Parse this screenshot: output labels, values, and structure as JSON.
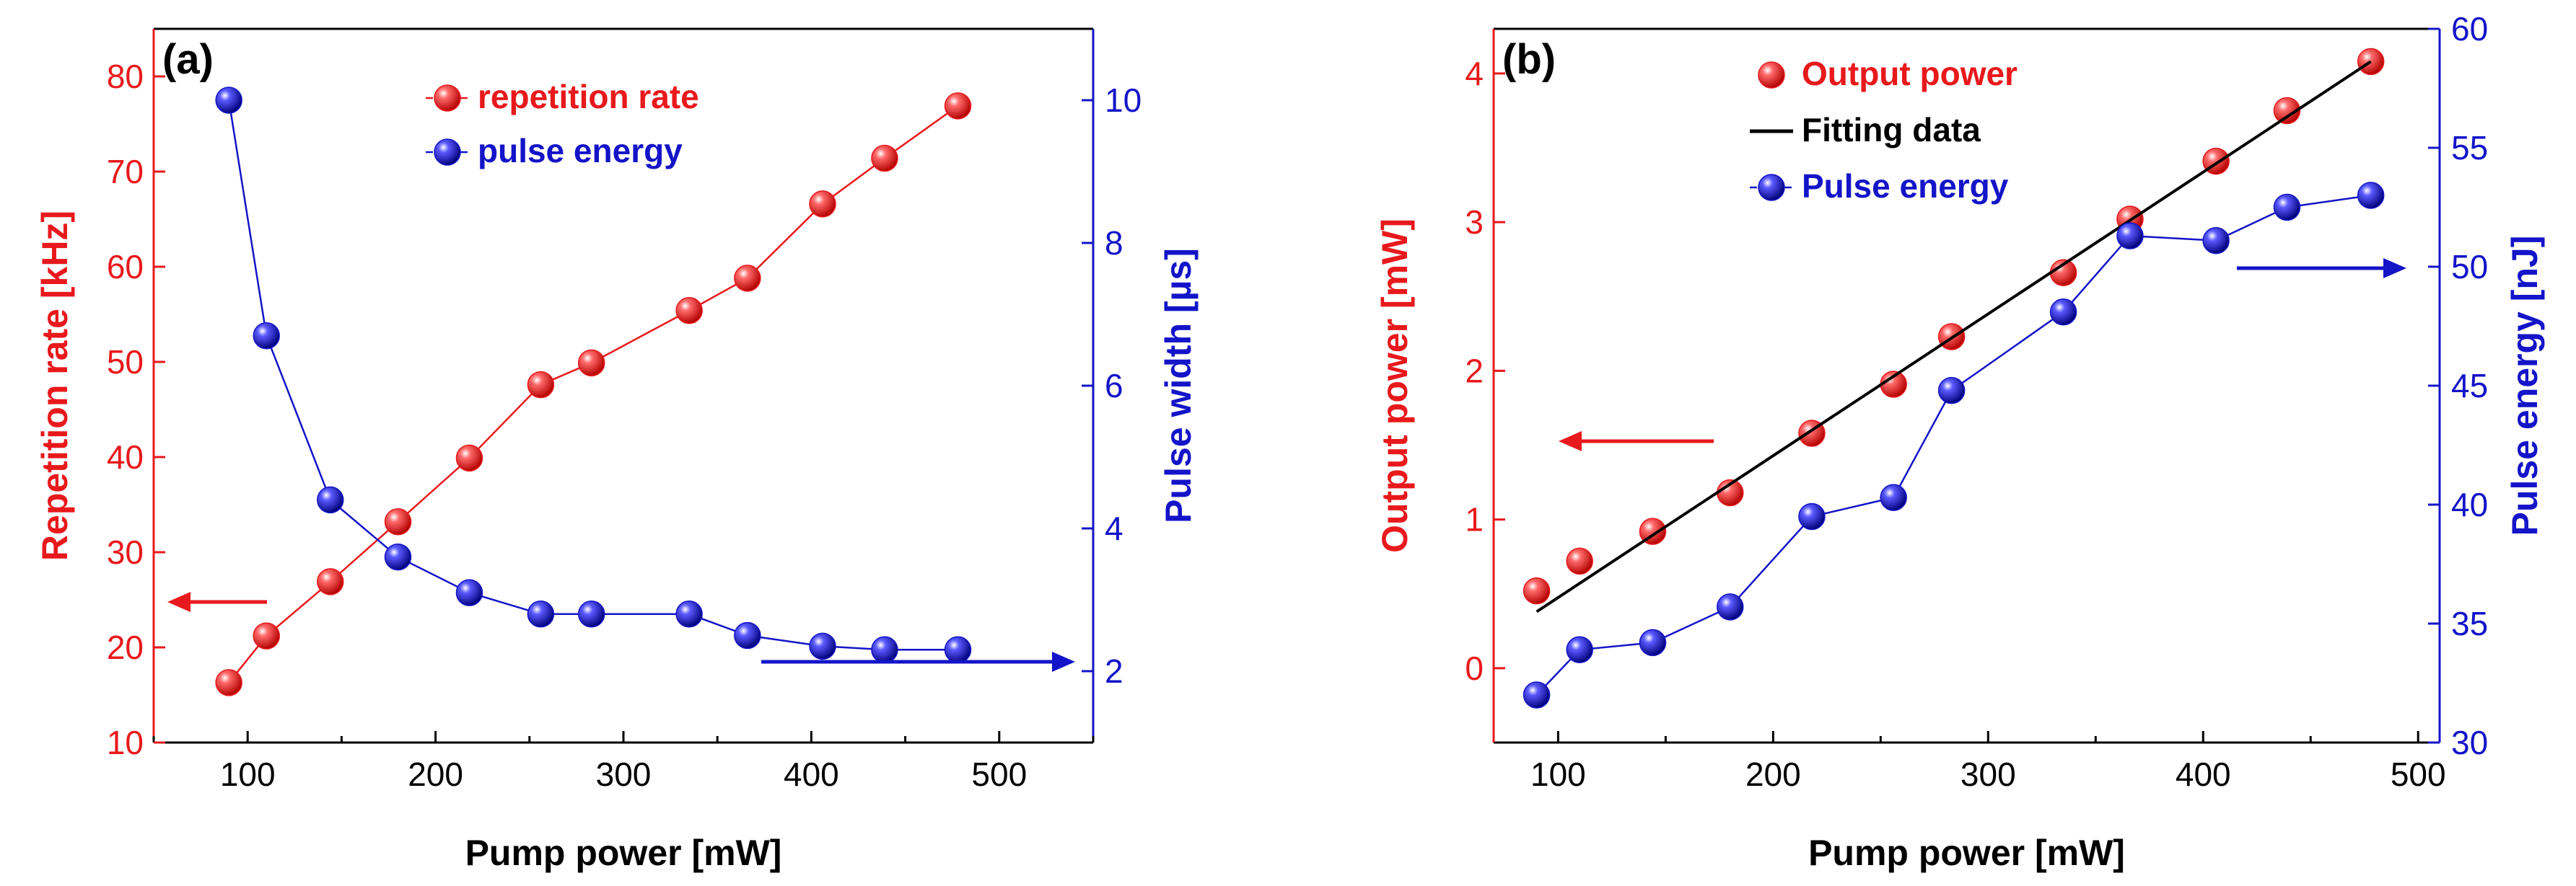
{
  "figure": {
    "colors": {
      "red": "#e8191c",
      "blue": "#1414c8",
      "black": "#000000"
    }
  },
  "chart_data": [
    {
      "type": "line",
      "panel_label": "(a)",
      "title": "",
      "xlabel": "Pump power [mW]",
      "ylabel": "Repetition rate [kHz]",
      "y2label": "Pulse width [µs]",
      "xlim": [
        50,
        550
      ],
      "ylim": [
        10,
        85
      ],
      "y2lim": [
        1,
        11
      ],
      "x_ticks": [
        100,
        200,
        300,
        400,
        500
      ],
      "y_ticks": [
        10,
        20,
        30,
        40,
        50,
        60,
        70,
        80
      ],
      "y2_ticks": [
        2,
        4,
        6,
        8,
        10
      ],
      "x": [
        90,
        110,
        144,
        180,
        218,
        256,
        283,
        335,
        366,
        406,
        439,
        478
      ],
      "series": [
        {
          "name": "repetition rate",
          "axis": "left",
          "color": "#e8191c",
          "values": [
            16.3,
            21.2,
            26.9,
            33.2,
            39.9,
            47.6,
            49.9,
            55.4,
            58.8,
            66.6,
            71.4,
            76.9
          ]
        },
        {
          "name": "pulse energy",
          "axis": "right",
          "color": "#1414c8",
          "values": [
            10.0,
            6.7,
            4.4,
            3.6,
            3.1,
            2.8,
            2.8,
            2.8,
            2.5,
            2.35,
            2.3,
            2.3
          ]
        }
      ],
      "legend": {
        "placement": "top-center",
        "entries": [
          "repetition rate",
          "pulse energy"
        ]
      },
      "arrows": [
        {
          "series": "repetition rate",
          "direction": "left"
        },
        {
          "series": "pulse energy",
          "direction": "right"
        }
      ]
    },
    {
      "type": "line",
      "panel_label": "(b)",
      "title": "",
      "xlabel": "Pump power [mW]",
      "ylabel": "Output power [mW]",
      "y2label": "Pulse energy [nJ]",
      "xlim": [
        70,
        510
      ],
      "ylim": [
        -0.5,
        4.3
      ],
      "y2lim": [
        30,
        60
      ],
      "x_ticks": [
        100,
        200,
        300,
        400,
        500
      ],
      "y_ticks": [
        0,
        1,
        2,
        3,
        4
      ],
      "y2_ticks": [
        30,
        35,
        40,
        45,
        50,
        55,
        60
      ],
      "x": [
        90,
        110,
        144,
        180,
        218,
        256,
        283,
        335,
        366,
        406,
        439,
        478
      ],
      "series": [
        {
          "name": "Output power",
          "axis": "left",
          "color": "#e8191c",
          "style": "markers",
          "values": [
            0.52,
            0.72,
            0.92,
            1.18,
            1.58,
            1.91,
            2.23,
            2.66,
            3.02,
            3.41,
            3.75,
            4.08
          ]
        },
        {
          "name": "Fitting data",
          "axis": "left",
          "color": "#000000",
          "style": "line",
          "x": [
            90,
            478
          ],
          "values": [
            0.38,
            4.08
          ]
        },
        {
          "name": "Pulse energy",
          "axis": "right",
          "color": "#1414c8",
          "style": "line+markers",
          "values": [
            32.0,
            33.9,
            34.2,
            35.7,
            39.5,
            40.3,
            44.8,
            48.1,
            51.3,
            51.1,
            52.5,
            53.0
          ]
        }
      ],
      "legend": {
        "placement": "top-center",
        "entries": [
          "Output power",
          "Fitting data",
          "Pulse energy"
        ]
      },
      "arrows": [
        {
          "series": "Output power",
          "direction": "left"
        },
        {
          "series": "Pulse energy",
          "direction": "right"
        }
      ]
    }
  ]
}
